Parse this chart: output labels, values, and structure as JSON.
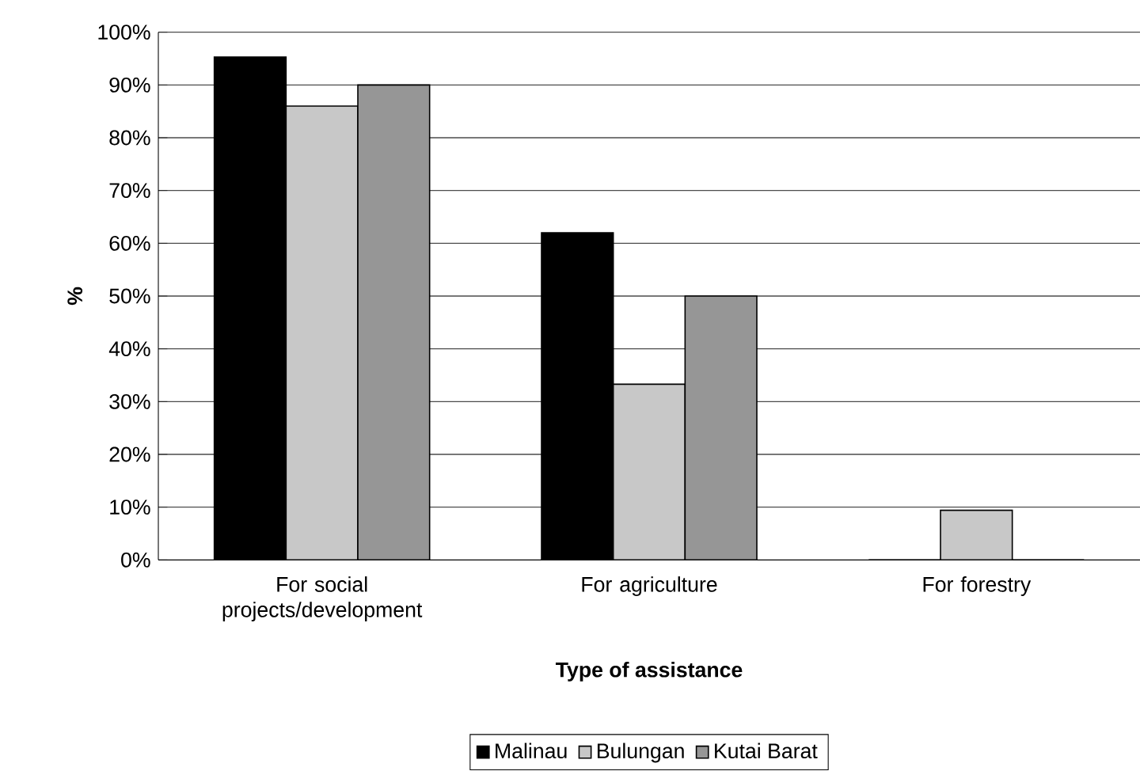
{
  "chart_data": {
    "type": "bar",
    "xlabel": "Type of assistance",
    "ylabel": "%",
    "categories": [
      "For social projects/development",
      "For agriculture",
      "For forestry"
    ],
    "series": [
      {
        "name": "Malinau",
        "color": "#000000",
        "values": [
          95.3,
          62,
          0
        ]
      },
      {
        "name": "Bulungan",
        "color": "#c8c8c8",
        "values": [
          86,
          33.3,
          9.4
        ]
      },
      {
        "name": "Kutai Barat",
        "color": "#969696",
        "values": [
          90,
          50,
          0
        ]
      }
    ],
    "ylim": [
      0,
      100
    ],
    "yticks": [
      {
        "value": 0,
        "label": "0%"
      },
      {
        "value": 10,
        "label": "10%"
      },
      {
        "value": 20,
        "label": "20%"
      },
      {
        "value": 30,
        "label": "30%"
      },
      {
        "value": 40,
        "label": "40%"
      },
      {
        "value": 50,
        "label": "50%"
      },
      {
        "value": 60,
        "label": "60%"
      },
      {
        "value": 70,
        "label": "70%"
      },
      {
        "value": 80,
        "label": "80%"
      },
      {
        "value": 90,
        "label": "90%"
      },
      {
        "value": 100,
        "label": "100%"
      }
    ],
    "grid": "y",
    "legend": "bottom"
  }
}
